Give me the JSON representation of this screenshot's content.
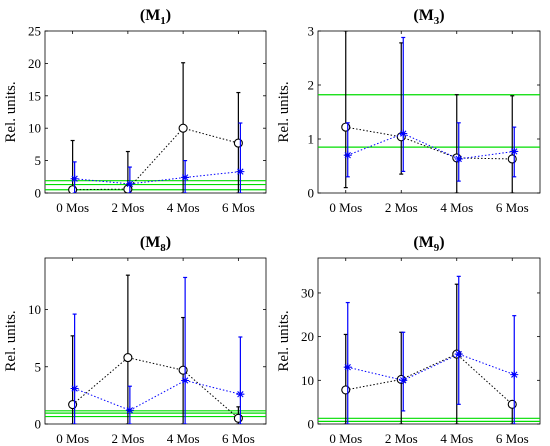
{
  "chart_data": [
    {
      "type": "scatter",
      "title": "(M1)",
      "title_main": "(M",
      "title_sub": "1",
      "title_end": ")",
      "ylabel": "Rel. units.",
      "categories": [
        "0 Mos",
        "2 Mos",
        "4 Mos",
        "6 Mos"
      ],
      "ylim": [
        0,
        25
      ],
      "yticks": [
        "0",
        "5",
        "10",
        "15",
        "20",
        "25"
      ],
      "series": [
        {
          "marker": "circle",
          "color": "#000000",
          "values": [
            0.5,
            0.6,
            10.0,
            7.7
          ],
          "lower": [
            0.0,
            0.0,
            0.0,
            0.0
          ],
          "upper": [
            8.1,
            6.4,
            20.1,
            15.5
          ]
        },
        {
          "marker": "star",
          "color": "#0000ff",
          "values": [
            2.2,
            1.4,
            2.4,
            3.3
          ],
          "lower": [
            0.0,
            0.0,
            0.0,
            0.0
          ],
          "upper": [
            4.8,
            4.0,
            5.0,
            10.8
          ]
        }
      ],
      "hlines": [
        0.5,
        1.3,
        1.9
      ],
      "hline_color": "#00dd00"
    },
    {
      "type": "scatter",
      "title": "(M3)",
      "title_main": "(M",
      "title_sub": "3",
      "title_end": ")",
      "ylabel": "Rel. units.",
      "categories": [
        "0 Mos",
        "2 Mos",
        "4 Mos",
        "6 Mos"
      ],
      "ylim": [
        0,
        3
      ],
      "yticks": [
        "0",
        "1",
        "2",
        "3"
      ],
      "series": [
        {
          "marker": "circle",
          "color": "#000000",
          "values": [
            1.22,
            1.04,
            0.65,
            0.63
          ],
          "lower": [
            0.1,
            0.35,
            0.0,
            0.0
          ],
          "upper": [
            3.0,
            2.78,
            1.82,
            1.8
          ]
        },
        {
          "marker": "star",
          "color": "#0000ff",
          "values": [
            0.7,
            1.1,
            0.63,
            0.77
          ],
          "lower": [
            0.3,
            0.4,
            0.22,
            0.3
          ],
          "upper": [
            1.3,
            2.88,
            1.3,
            1.22
          ]
        }
      ],
      "hlines": [
        0.85,
        1.82
      ],
      "hline_color": "#00dd00"
    },
    {
      "type": "scatter",
      "title": "(M8)",
      "title_main": "(M",
      "title_sub": "8",
      "title_end": ")",
      "ylabel": "Rel. units.",
      "categories": [
        "0 Mos",
        "2 Mos",
        "4 Mos",
        "6 Mos"
      ],
      "ylim": [
        0,
        14.5
      ],
      "yticks": [
        "0",
        "5",
        "10"
      ],
      "ytick_values": [
        0,
        5,
        10
      ],
      "series": [
        {
          "marker": "circle",
          "color": "#000000",
          "values": [
            1.7,
            5.8,
            4.7,
            0.5
          ],
          "lower": [
            0.0,
            0.0,
            0.0,
            0.0
          ],
          "upper": [
            7.7,
            13.0,
            9.3,
            1.5
          ]
        },
        {
          "marker": "star",
          "color": "#0000ff",
          "values": [
            3.1,
            1.2,
            3.8,
            2.6
          ],
          "lower": [
            0.0,
            0.0,
            0.0,
            0.0
          ],
          "upper": [
            9.6,
            3.3,
            12.8,
            7.6
          ]
        }
      ],
      "hlines": [
        0.65,
        0.95,
        1.15
      ],
      "hline_color": "#00dd00"
    },
    {
      "type": "scatter",
      "title": "(M9)",
      "title_main": "(M",
      "title_sub": "9",
      "title_end": ")",
      "ylabel": "Rel. units.",
      "categories": [
        "0 Mos",
        "2 Mos",
        "4 Mos",
        "6 Mos"
      ],
      "ylim": [
        0,
        38
      ],
      "yticks": [
        "0",
        "10",
        "20",
        "30"
      ],
      "ytick_values": [
        0,
        10,
        20,
        30
      ],
      "series": [
        {
          "marker": "circle",
          "color": "#000000",
          "values": [
            7.8,
            10.2,
            16.0,
            4.5
          ],
          "lower": [
            0.0,
            0.0,
            0.0,
            0.0
          ],
          "upper": [
            20.5,
            21.0,
            32.0,
            5.0
          ]
        },
        {
          "marker": "star",
          "color": "#0000ff",
          "values": [
            13.0,
            10.0,
            16.0,
            11.3
          ],
          "lower": [
            0.0,
            3.0,
            4.5,
            0.0
          ],
          "upper": [
            27.8,
            21.0,
            33.8,
            24.8
          ]
        }
      ],
      "hlines": [
        0.6,
        1.3
      ],
      "hline_color": "#00dd00"
    }
  ]
}
